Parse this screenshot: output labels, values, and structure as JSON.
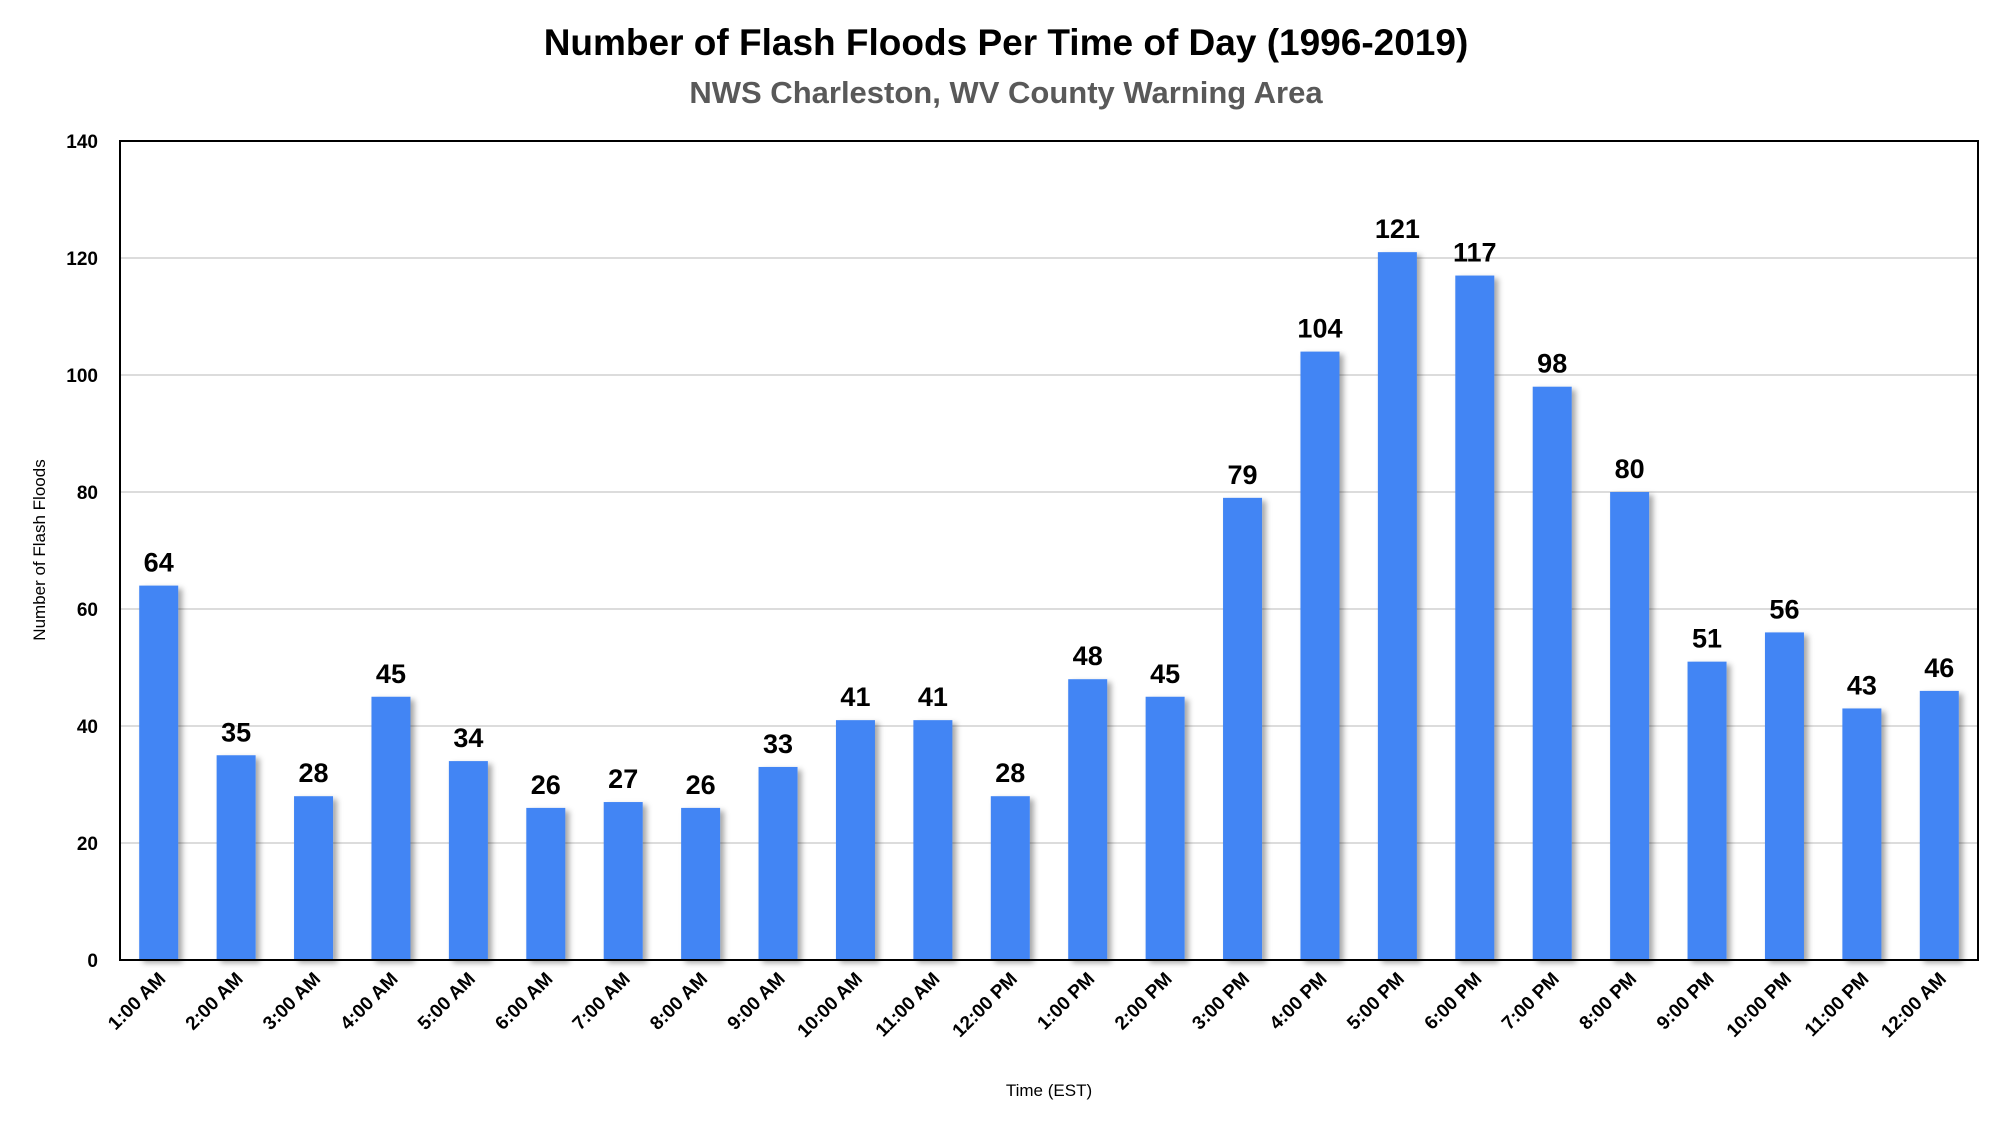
{
  "chart_data": {
    "type": "bar",
    "title": "Number of Flash Floods Per Time of Day (1996-2019)",
    "subtitle": "NWS Charleston, WV County Warning Area",
    "xlabel": "Time (EST)",
    "ylabel": "Number of Flash Floods",
    "ylim": [
      0,
      140
    ],
    "yticks": [
      0,
      20,
      40,
      60,
      80,
      100,
      120,
      140
    ],
    "grid": true,
    "legend": "none",
    "bar_color": "#4285f4",
    "categories": [
      "1:00 AM",
      "2:00 AM",
      "3:00 AM",
      "4:00 AM",
      "5:00 AM",
      "6:00 AM",
      "7:00 AM",
      "8:00 AM",
      "9:00 AM",
      "10:00 AM",
      "11:00 AM",
      "12:00 PM",
      "1:00 PM",
      "2:00 PM",
      "3:00 PM",
      "4:00 PM",
      "5:00 PM",
      "6:00 PM",
      "7:00 PM",
      "8:00 PM",
      "9:00 PM",
      "10:00 PM",
      "11:00 PM",
      "12:00 AM"
    ],
    "values": [
      64,
      35,
      28,
      45,
      34,
      26,
      27,
      26,
      33,
      41,
      41,
      28,
      48,
      45,
      79,
      104,
      121,
      117,
      98,
      80,
      51,
      56,
      43,
      46
    ]
  }
}
